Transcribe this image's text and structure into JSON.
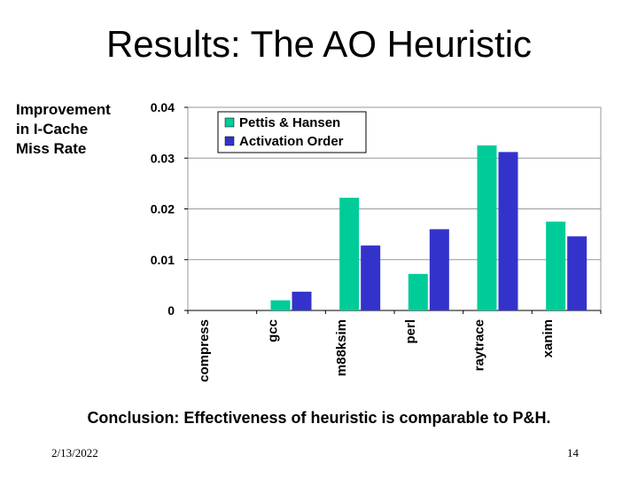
{
  "slide": {
    "title": "Results: The AO Heuristic",
    "conclusion": "Conclusion: Effectiveness of heuristic is comparable to P&H.",
    "date": "2/13/2022",
    "page_number": "14"
  },
  "chart_data": {
    "type": "bar",
    "ylabel_lines": [
      "Improvement",
      "in I-Cache",
      "Miss Rate"
    ],
    "categories": [
      "compress",
      "gcc",
      "m88ksim",
      "perl",
      "raytrace",
      "xanim"
    ],
    "series": [
      {
        "name": "Pettis & Hansen",
        "color": "#00cc99",
        "values": [
          0,
          0.002,
          0.0222,
          0.0072,
          0.0325,
          0.0175
        ]
      },
      {
        "name": "Activation Order",
        "color": "#3333cc",
        "values": [
          0,
          0.0037,
          0.0128,
          0.016,
          0.0312,
          0.0146
        ]
      }
    ],
    "ylim": [
      0,
      0.04
    ],
    "yticks": [
      0,
      0.01,
      0.02,
      0.03,
      0.04
    ],
    "ytick_labels": [
      "0",
      "0.01",
      "0.02",
      "0.03",
      "0.04"
    ],
    "grid": true,
    "legend_position": "top-left"
  }
}
